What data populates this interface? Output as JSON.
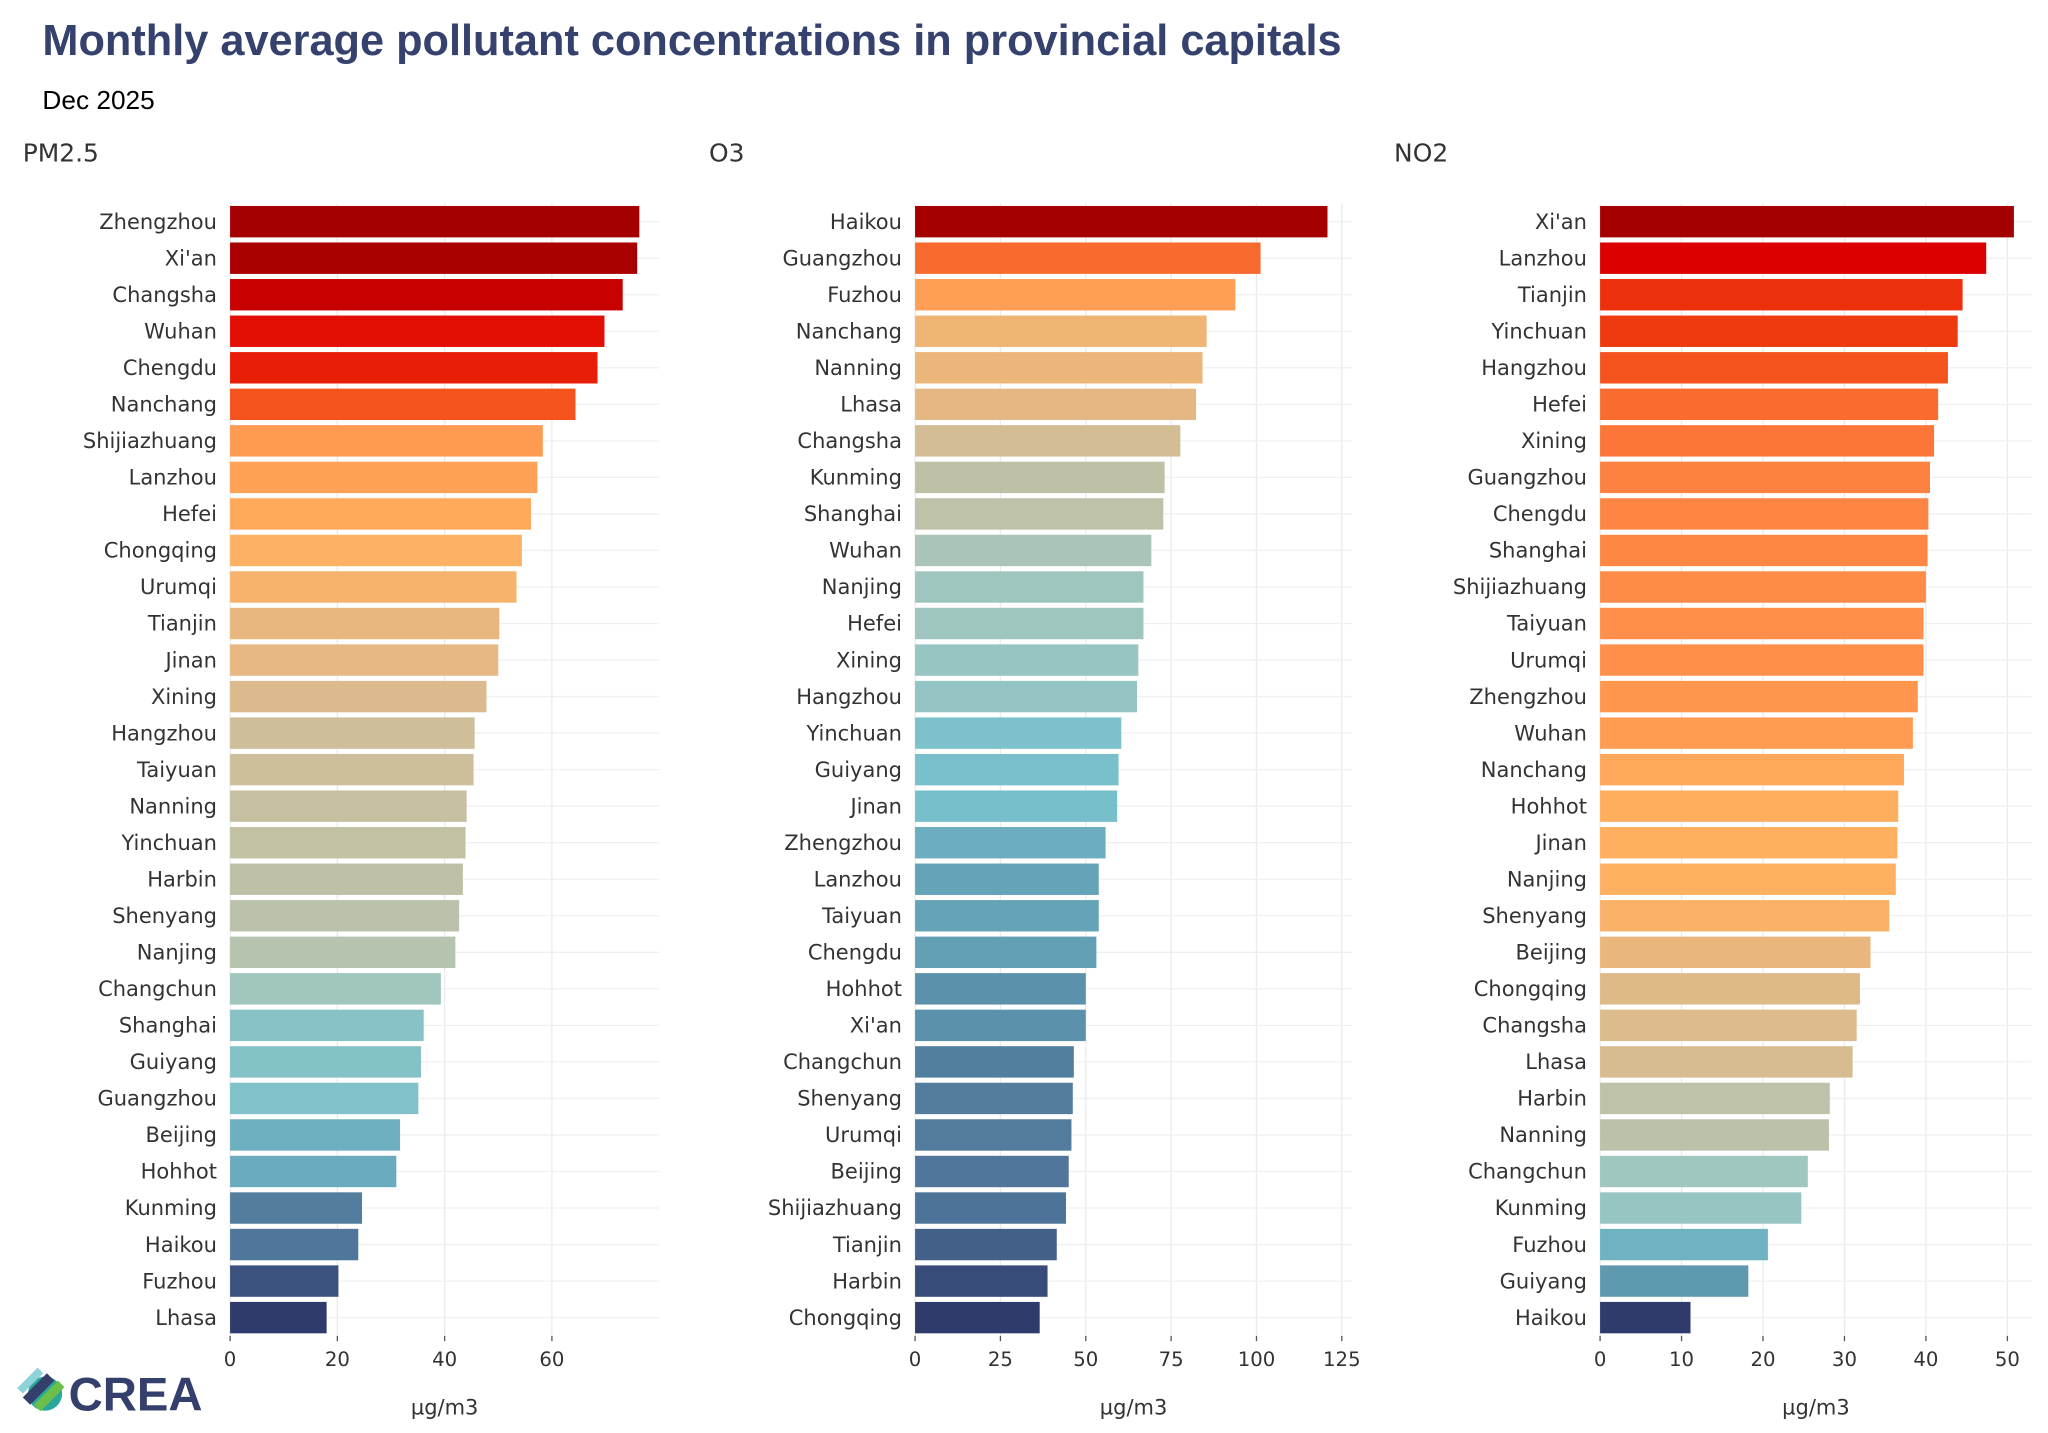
{
  "title": "Monthly average pollutant concentrations in provincial capitals",
  "subtitle": "Dec 2025",
  "logo_text": "CREA",
  "palette": [
    "#2f3b6b",
    "#4e7398",
    "#5f9ab0",
    "#78c0cc",
    "#9fc6bf",
    "#c8c0a0",
    "#e6b882",
    "#ffb060",
    "#ff8c48",
    "#f04010",
    "#e00000",
    "#a50000"
  ],
  "chart_data": [
    {
      "type": "bar",
      "title": "PM2.5",
      "xlabel": "µg/m3",
      "xlim": [
        0,
        80
      ],
      "ticks": [
        0,
        20,
        40,
        60
      ],
      "grid": true,
      "categories": [
        "Zhengzhou",
        "Xi'an",
        "Changsha",
        "Wuhan",
        "Chengdu",
        "Nanchang",
        "Shijiazhuang",
        "Lanzhou",
        "Hefei",
        "Chongqing",
        "Urumqi",
        "Tianjin",
        "Jinan",
        "Xining",
        "Hangzhou",
        "Taiyuan",
        "Nanning",
        "Yinchuan",
        "Harbin",
        "Shenyang",
        "Nanjing",
        "Changchun",
        "Shanghai",
        "Guiyang",
        "Guangzhou",
        "Beijing",
        "Hohhot",
        "Kunming",
        "Haikou",
        "Fuzhou",
        "Lhasa"
      ],
      "values": [
        76.3,
        75.9,
        73.2,
        69.8,
        68.5,
        64.4,
        58.3,
        57.3,
        56.1,
        54.4,
        53.4,
        50.2,
        50.0,
        47.8,
        45.6,
        45.4,
        44.1,
        43.9,
        43.4,
        42.7,
        42.0,
        39.3,
        36.1,
        35.6,
        35.1,
        31.7,
        31.0,
        24.6,
        23.9,
        20.2,
        18.0
      ]
    },
    {
      "type": "bar",
      "title": "O3",
      "xlabel": "µg/m3",
      "xlim": [
        0,
        128
      ],
      "ticks": [
        0,
        25,
        50,
        75,
        100,
        125
      ],
      "grid": true,
      "categories": [
        "Haikou",
        "Guangzhou",
        "Fuzhou",
        "Nanchang",
        "Nanning",
        "Lhasa",
        "Changsha",
        "Kunming",
        "Shanghai",
        "Wuhan",
        "Nanjing",
        "Hefei",
        "Xining",
        "Hangzhou",
        "Yinchuan",
        "Guiyang",
        "Jinan",
        "Zhengzhou",
        "Lanzhou",
        "Taiyuan",
        "Chengdu",
        "Hohhot",
        "Xi'an",
        "Changchun",
        "Shenyang",
        "Urumqi",
        "Beijing",
        "Shijiazhuang",
        "Tianjin",
        "Harbin",
        "Chongqing"
      ],
      "values": [
        120.8,
        101.2,
        93.8,
        85.4,
        84.2,
        82.3,
        77.7,
        73.1,
        72.7,
        69.2,
        66.9,
        66.9,
        65.4,
        65.0,
        60.4,
        59.6,
        59.2,
        55.8,
        53.8,
        53.8,
        53.1,
        50.0,
        50.0,
        46.5,
        46.2,
        45.8,
        45.0,
        44.2,
        41.5,
        38.8,
        36.5
      ]
    },
    {
      "type": "bar",
      "title": "NO2",
      "xlabel": "µg/m3",
      "xlim": [
        0,
        53
      ],
      "ticks": [
        0,
        10,
        20,
        30,
        40,
        50
      ],
      "grid": true,
      "categories": [
        "Xi'an",
        "Lanzhou",
        "Tianjin",
        "Yinchuan",
        "Hangzhou",
        "Hefei",
        "Xining",
        "Guangzhou",
        "Chengdu",
        "Shanghai",
        "Shijiazhuang",
        "Taiyuan",
        "Urumqi",
        "Zhengzhou",
        "Wuhan",
        "Nanchang",
        "Hohhot",
        "Jinan",
        "Nanjing",
        "Shenyang",
        "Beijing",
        "Chongqing",
        "Changsha",
        "Lhasa",
        "Harbin",
        "Nanning",
        "Changchun",
        "Kunming",
        "Fuzhou",
        "Guiyang",
        "Haikou"
      ],
      "values": [
        50.8,
        47.4,
        44.5,
        43.9,
        42.7,
        41.5,
        41.0,
        40.5,
        40.3,
        40.2,
        40.0,
        39.7,
        39.7,
        39.0,
        38.4,
        37.3,
        36.6,
        36.5,
        36.3,
        35.5,
        33.2,
        31.9,
        31.5,
        31.0,
        28.2,
        28.1,
        25.5,
        24.7,
        20.6,
        18.2,
        11.1
      ]
    }
  ]
}
